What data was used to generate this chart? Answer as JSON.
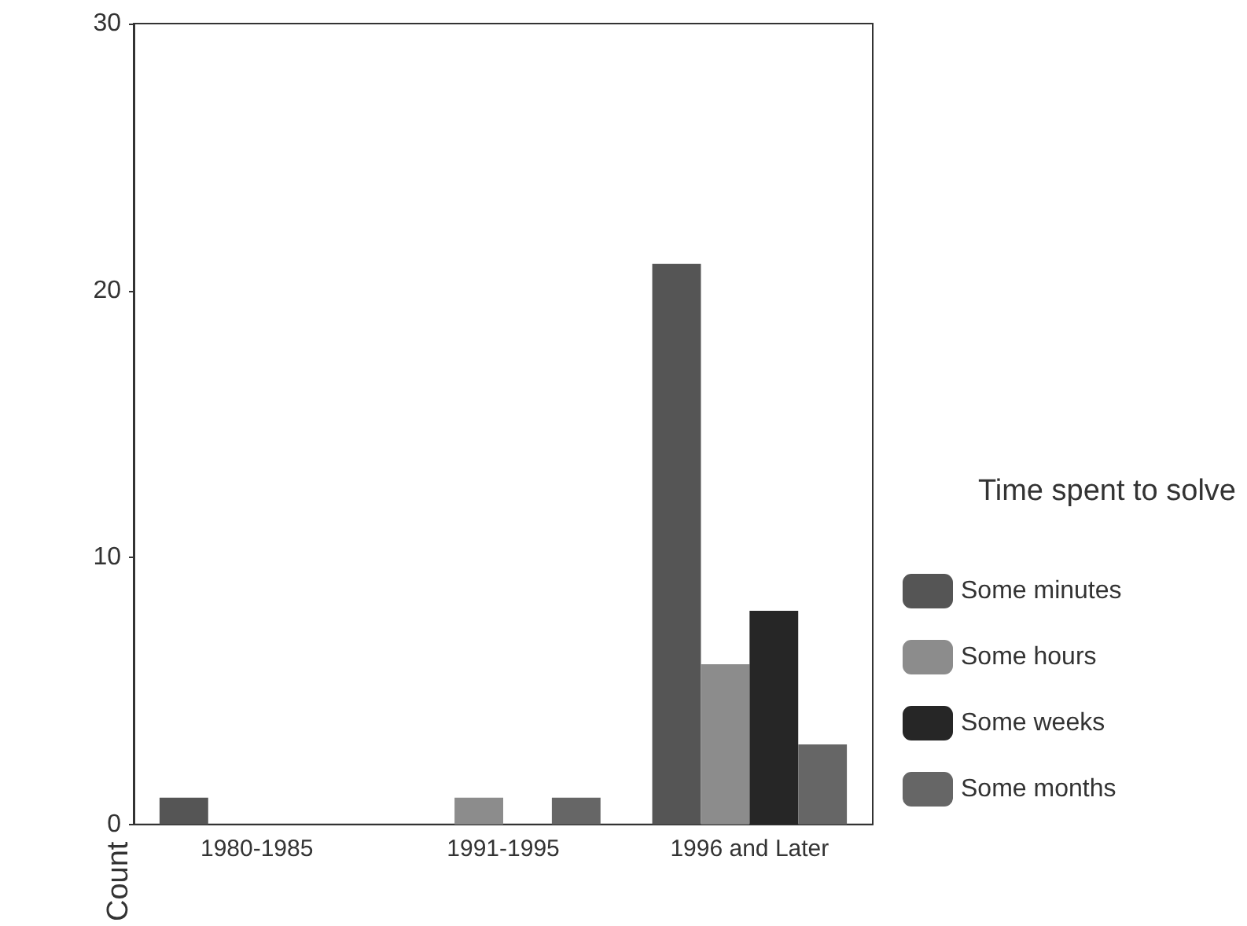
{
  "chart_data": {
    "type": "bar",
    "ylabel": "Count",
    "legend_title": "Time spent to solve",
    "legend": "right",
    "grid": false,
    "categories": [
      "1980-1985",
      "1991-1995",
      "1996 and Later"
    ],
    "series": [
      {
        "name": "Some minutes",
        "color": "#555555",
        "values": [
          1,
          0,
          21
        ]
      },
      {
        "name": "Some hours",
        "color": "#8c8c8c",
        "values": [
          0,
          1,
          6
        ]
      },
      {
        "name": "Some weeks",
        "color": "#262626",
        "values": [
          0,
          0,
          8
        ]
      },
      {
        "name": "Some months",
        "color": "#666666",
        "values": [
          0,
          1,
          3
        ]
      }
    ],
    "ylim": [
      0,
      30
    ],
    "yticks": [
      0,
      10,
      20,
      30
    ]
  }
}
